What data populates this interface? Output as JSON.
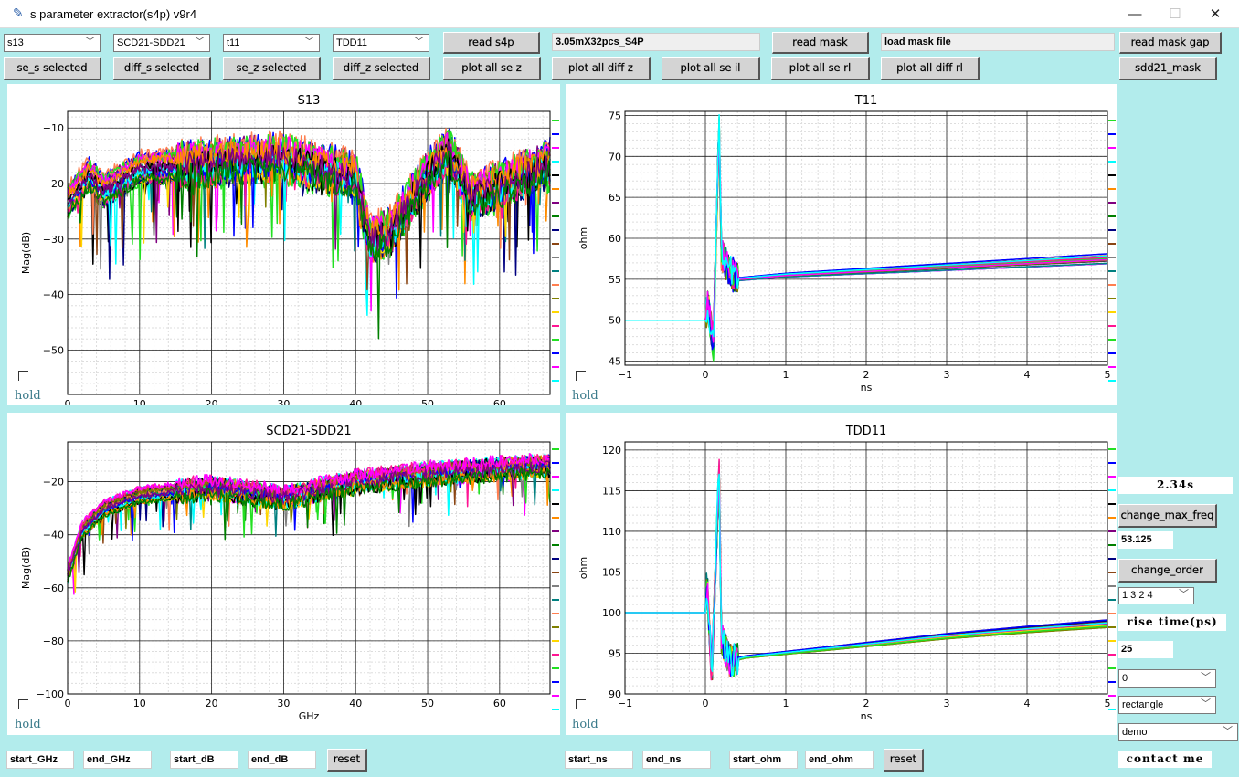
{
  "window": {
    "title": "s parameter extractor(s4p) v9r4",
    "minimize": "—",
    "maximize": "☐",
    "close": "✕"
  },
  "toolbar": {
    "combos": [
      "s13",
      "SCD21-SDD21",
      "t11",
      "TDD11"
    ],
    "read_s4p": "read s4p",
    "file_name": "3.05mX32pcs_S4P",
    "read_mask": "read mask",
    "mask_file": "load mask file",
    "read_mask_gap": "read mask gap",
    "row2": [
      "se_s selected",
      "diff_s selected",
      "se_z selected",
      "diff_z selected",
      "plot all se z",
      "plot all diff z",
      "plot all se il",
      "plot all se rl",
      "plot all diff rl"
    ],
    "sdd21_mask": "sdd21_mask"
  },
  "right_panel": {
    "elapsed": "2.34s",
    "change_max_freq": "change_max_freq",
    "max_freq": "53.125",
    "change_order": "change_order",
    "order": "1 3 2 4",
    "rise_time_label": "rise time(ps)",
    "rise_time": "25",
    "combo_a": "0",
    "window_type": "rectangle",
    "mode": "demo",
    "contact": "contact me"
  },
  "hold_label": "hold",
  "bottom_left": {
    "start_x": "start_GHz",
    "end_x": "end_GHz",
    "start_y": "start_dB",
    "end_y": "end_dB",
    "reset": "reset"
  },
  "bottom_right": {
    "start_x": "start_ns",
    "end_x": "end_ns",
    "start_y": "start_ohm",
    "end_y": "end_ohm",
    "reset": "reset"
  },
  "colors": [
    "#22e022",
    "#0000ff",
    "#ff00ff",
    "#00ffff",
    "#000000",
    "#ff8c00",
    "#800080",
    "#008000",
    "#000080",
    "#8b4513",
    "#808080",
    "#008080",
    "#ff7f50",
    "#808000",
    "#ffd700",
    "#ff1493"
  ],
  "chart_data": [
    {
      "id": "s13",
      "type": "line",
      "title": "S13",
      "xlabel": "GHz",
      "ylabel": "Mag(dB)",
      "xlim": [
        0,
        67
      ],
      "ylim": [
        -58,
        -7
      ],
      "xticks": [
        0,
        10,
        20,
        30,
        40,
        50,
        60
      ],
      "yticks": [
        -10,
        -20,
        -30,
        -40,
        -50
      ],
      "trace_count": 32,
      "grid": true,
      "typical_trace": {
        "x": [
          0,
          3,
          5,
          10,
          20,
          30,
          35,
          40,
          42,
          45,
          50,
          53,
          56,
          60,
          67
        ],
        "y": [
          -23,
          -18,
          -21,
          -17,
          -16,
          -15,
          -17,
          -18,
          -30,
          -28,
          -18,
          -14,
          -22,
          -20,
          -16
        ]
      }
    },
    {
      "id": "t11",
      "type": "line",
      "title": "T11",
      "xlabel": "ns",
      "ylabel": "ohm",
      "xlim": [
        -1,
        5
      ],
      "ylim": [
        44.5,
        75.5
      ],
      "xticks": [
        -1,
        0,
        1,
        2,
        3,
        4,
        5
      ],
      "yticks": [
        45,
        50,
        55,
        60,
        65,
        70,
        75
      ],
      "trace_count": 32,
      "grid": true,
      "typical_trace": {
        "x": [
          -1,
          0,
          0.03,
          0.1,
          0.17,
          0.2,
          0.3,
          0.4,
          1,
          2,
          3,
          4,
          5
        ],
        "y": [
          50,
          50,
          52,
          47,
          74,
          58,
          56,
          55,
          55.5,
          56,
          56.5,
          57,
          57.5
        ]
      }
    },
    {
      "id": "scd21_sdd21",
      "type": "line",
      "title": "SCD21-SDD21",
      "xlabel": "GHz",
      "ylabel": "Mag(dB)",
      "xlim": [
        0,
        67
      ],
      "ylim": [
        -100,
        -5
      ],
      "xticks": [
        0,
        10,
        20,
        30,
        40,
        50,
        60
      ],
      "yticks": [
        -20,
        -40,
        -60,
        -80,
        -100
      ],
      "trace_count": 64,
      "grid": true,
      "typical_trace": {
        "x": [
          0,
          2,
          5,
          10,
          20,
          30,
          40,
          50,
          60,
          67
        ],
        "y": [
          -55,
          -38,
          -30,
          -25,
          -22,
          -26,
          -20,
          -17,
          -15,
          -14
        ]
      }
    },
    {
      "id": "tdd11",
      "type": "line",
      "title": "TDD11",
      "xlabel": "ns",
      "ylabel": "ohm",
      "xlim": [
        -1,
        5
      ],
      "ylim": [
        90,
        121
      ],
      "xticks": [
        -1,
        0,
        1,
        2,
        3,
        4,
        5
      ],
      "yticks": [
        90,
        95,
        100,
        105,
        110,
        115,
        120
      ],
      "trace_count": 32,
      "grid": true,
      "typical_trace": {
        "x": [
          -1,
          0,
          0.02,
          0.08,
          0.17,
          0.2,
          0.3,
          0.5,
          1,
          2,
          3,
          4,
          5
        ],
        "y": [
          100,
          100,
          104,
          92,
          118,
          97,
          94,
          94.5,
          95,
          96,
          97,
          97.8,
          98.5
        ]
      }
    }
  ]
}
